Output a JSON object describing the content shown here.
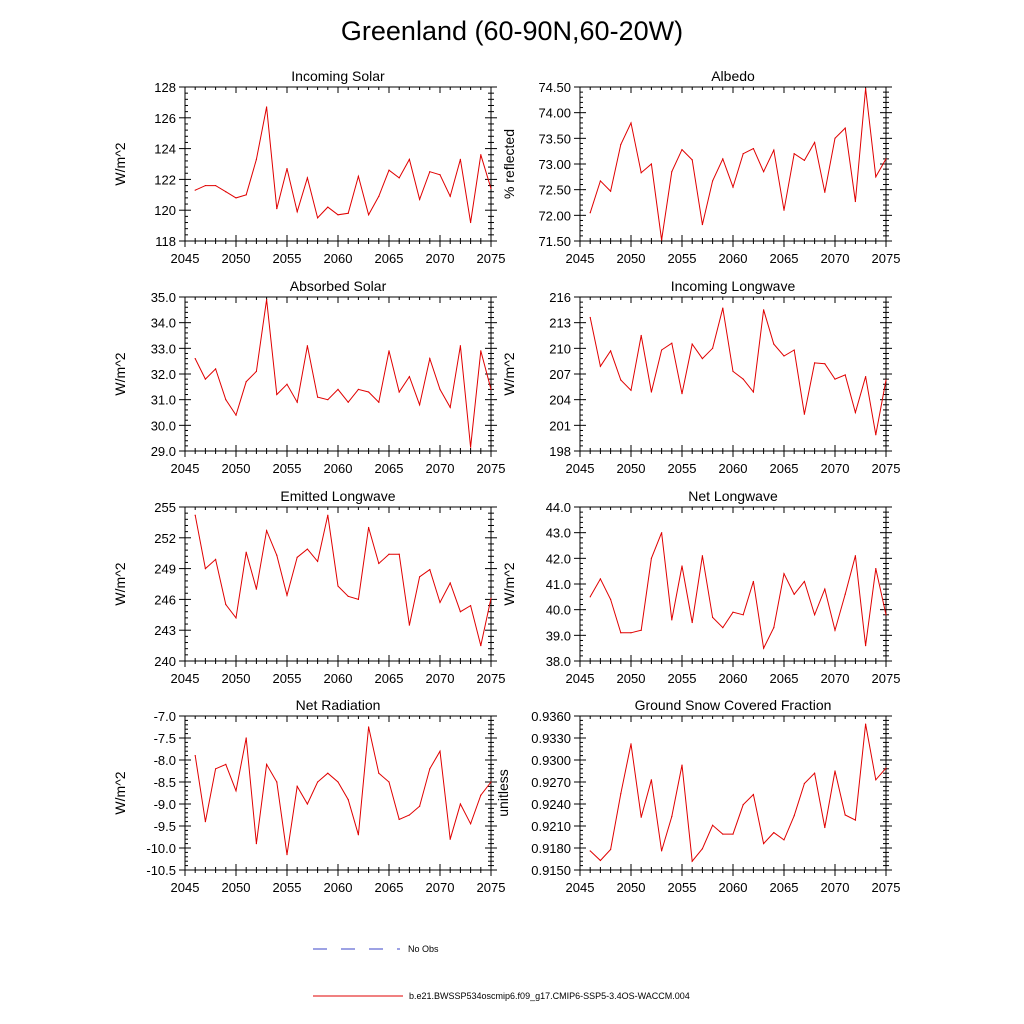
{
  "figure_title": "Greenland (60-90N,60-20W)",
  "legend": {
    "obs_label": "No Obs",
    "model_label": "b.e21.BWSSP534oscmip6.f09_g17.CMIP6-SSP5-3.4OS-WACCM.004",
    "model_color": "#e00000",
    "obs_color": "#3b45c8"
  },
  "chart_data": [
    {
      "type": "line",
      "title": "Incoming Solar",
      "xlabel": "",
      "ylabel": "W/m^2",
      "xlim": [
        2045,
        2075
      ],
      "ylim": [
        118,
        128
      ],
      "xticks": [
        "2045",
        "2050",
        "2055",
        "2060",
        "2065",
        "2070",
        "2075"
      ],
      "yticks": [
        "118",
        "120",
        "122",
        "124",
        "126",
        "128"
      ],
      "x": [
        2046,
        2047,
        2048,
        2049,
        2050,
        2051,
        2052,
        2053,
        2054,
        2055,
        2056,
        2057,
        2058,
        2059,
        2060,
        2061,
        2062,
        2063,
        2064,
        2065,
        2066,
        2067,
        2068,
        2069,
        2070,
        2071,
        2072,
        2073,
        2074,
        2075
      ],
      "series": [
        {
          "name": "b.e21.BWSSP534oscmip6.f09_g17.CMIP6-SSP5-3.4OS-WACCM.004",
          "values": [
            121.3,
            121.6,
            121.6,
            121.2,
            120.8,
            121.0,
            123.3,
            126.7,
            120.1,
            122.7,
            119.9,
            122.1,
            119.5,
            120.2,
            119.7,
            119.8,
            122.2,
            119.7,
            120.9,
            122.6,
            122.1,
            123.3,
            120.7,
            122.5,
            122.3,
            120.9,
            123.3,
            119.2,
            123.6,
            121.4
          ]
        }
      ]
    },
    {
      "type": "line",
      "title": "Albedo",
      "xlabel": "",
      "ylabel": "% reflected",
      "xlim": [
        2045,
        2075
      ],
      "ylim": [
        71.5,
        74.5
      ],
      "xticks": [
        "2045",
        "2050",
        "2055",
        "2060",
        "2065",
        "2070",
        "2075"
      ],
      "yticks": [
        "71.50",
        "72.00",
        "72.50",
        "73.00",
        "73.50",
        "74.00",
        "74.50"
      ],
      "x": [
        2046,
        2047,
        2048,
        2049,
        2050,
        2051,
        2052,
        2053,
        2054,
        2055,
        2056,
        2057,
        2058,
        2059,
        2060,
        2061,
        2062,
        2063,
        2064,
        2065,
        2066,
        2067,
        2068,
        2069,
        2070,
        2071,
        2072,
        2073,
        2074,
        2075
      ],
      "series": [
        {
          "name": "b.e21.BWSSP534oscmip6.f09_g17.CMIP6-SSP5-3.4OS-WACCM.004",
          "values": [
            72.05,
            72.67,
            72.47,
            73.38,
            73.8,
            72.83,
            73.0,
            71.52,
            72.85,
            73.28,
            73.08,
            71.82,
            72.67,
            73.1,
            72.55,
            73.2,
            73.3,
            72.85,
            73.27,
            72.1,
            73.2,
            73.07,
            73.42,
            72.45,
            73.5,
            73.7,
            72.27,
            74.47,
            72.75,
            73.1
          ]
        }
      ]
    },
    {
      "type": "line",
      "title": "Absorbed Solar",
      "xlabel": "",
      "ylabel": "W/m^2",
      "xlim": [
        2045,
        2075
      ],
      "ylim": [
        29.0,
        35.0
      ],
      "xticks": [
        "2045",
        "2050",
        "2055",
        "2060",
        "2065",
        "2070",
        "2075"
      ],
      "yticks": [
        "29.0",
        "30.0",
        "31.0",
        "32.0",
        "33.0",
        "34.0",
        "35.0"
      ],
      "x": [
        2046,
        2047,
        2048,
        2049,
        2050,
        2051,
        2052,
        2053,
        2054,
        2055,
        2056,
        2057,
        2058,
        2059,
        2060,
        2061,
        2062,
        2063,
        2064,
        2065,
        2066,
        2067,
        2068,
        2069,
        2070,
        2071,
        2072,
        2073,
        2074,
        2075
      ],
      "series": [
        {
          "name": "b.e21.BWSSP534oscmip6.f09_g17.CMIP6-SSP5-3.4OS-WACCM.004",
          "values": [
            32.6,
            31.8,
            32.2,
            31.0,
            30.4,
            31.7,
            32.1,
            34.9,
            31.2,
            31.6,
            30.9,
            33.1,
            31.1,
            31.0,
            31.4,
            30.9,
            31.4,
            31.3,
            30.9,
            32.9,
            31.3,
            31.9,
            30.8,
            32.6,
            31.4,
            30.7,
            33.1,
            29.15,
            32.9,
            31.4
          ]
        }
      ]
    },
    {
      "type": "line",
      "title": "Incoming Longwave",
      "xlabel": "",
      "ylabel": "W/m^2",
      "xlim": [
        2045,
        2075
      ],
      "ylim": [
        198,
        216
      ],
      "xticks": [
        "2045",
        "2050",
        "2055",
        "2060",
        "2065",
        "2070",
        "2075"
      ],
      "yticks": [
        "198",
        "201",
        "204",
        "207",
        "210",
        "213",
        "216"
      ],
      "x": [
        2046,
        2047,
        2048,
        2049,
        2050,
        2051,
        2052,
        2053,
        2054,
        2055,
        2056,
        2057,
        2058,
        2059,
        2060,
        2061,
        2062,
        2063,
        2064,
        2065,
        2066,
        2067,
        2068,
        2069,
        2070,
        2071,
        2072,
        2073,
        2074,
        2075
      ],
      "series": [
        {
          "name": "b.e21.BWSSP534oscmip6.f09_g17.CMIP6-SSP5-3.4OS-WACCM.004",
          "values": [
            213.6,
            207.9,
            209.7,
            206.3,
            205.1,
            211.5,
            204.9,
            209.8,
            210.6,
            204.7,
            210.5,
            208.8,
            210.0,
            214.7,
            207.3,
            206.4,
            204.9,
            214.5,
            210.5,
            209.1,
            209.8,
            202.3,
            208.3,
            208.2,
            206.4,
            206.9,
            202.5,
            206.7,
            199.9,
            206.3
          ]
        }
      ]
    },
    {
      "type": "line",
      "title": "Emitted Longwave",
      "xlabel": "",
      "ylabel": "W/m^2",
      "xlim": [
        2045,
        2075
      ],
      "ylim": [
        240,
        255
      ],
      "xticks": [
        "2045",
        "2050",
        "2055",
        "2060",
        "2065",
        "2070",
        "2075"
      ],
      "yticks": [
        "240",
        "243",
        "246",
        "249",
        "252",
        "255"
      ],
      "x": [
        2046,
        2047,
        2048,
        2049,
        2050,
        2051,
        2052,
        2053,
        2054,
        2055,
        2056,
        2057,
        2058,
        2059,
        2060,
        2061,
        2062,
        2063,
        2064,
        2065,
        2066,
        2067,
        2068,
        2069,
        2070,
        2071,
        2072,
        2073,
        2074,
        2075
      ],
      "series": [
        {
          "name": "b.e21.BWSSP534oscmip6.f09_g17.CMIP6-SSP5-3.4OS-WACCM.004",
          "values": [
            254.2,
            249.0,
            249.9,
            245.5,
            244.2,
            250.6,
            247.0,
            252.7,
            250.3,
            246.4,
            250.1,
            250.9,
            249.7,
            254.2,
            247.3,
            246.3,
            246.0,
            253.0,
            249.5,
            250.4,
            250.4,
            243.5,
            248.2,
            248.9,
            245.7,
            247.6,
            244.8,
            245.4,
            241.5,
            246.1
          ]
        }
      ]
    },
    {
      "type": "line",
      "title": "Net Longwave",
      "xlabel": "",
      "ylabel": "W/m^2",
      "xlim": [
        2045,
        2075
      ],
      "ylim": [
        38.0,
        44.0
      ],
      "xticks": [
        "2045",
        "2050",
        "2055",
        "2060",
        "2065",
        "2070",
        "2075"
      ],
      "yticks": [
        "38.0",
        "39.0",
        "40.0",
        "41.0",
        "42.0",
        "43.0",
        "44.0"
      ],
      "x": [
        2046,
        2047,
        2048,
        2049,
        2050,
        2051,
        2052,
        2053,
        2054,
        2055,
        2056,
        2057,
        2058,
        2059,
        2060,
        2061,
        2062,
        2063,
        2064,
        2065,
        2066,
        2067,
        2068,
        2069,
        2070,
        2071,
        2072,
        2073,
        2074,
        2075
      ],
      "series": [
        {
          "name": "b.e21.BWSSP534oscmip6.f09_g17.CMIP6-SSP5-3.4OS-WACCM.004",
          "values": [
            40.5,
            41.2,
            40.4,
            39.1,
            39.1,
            39.2,
            42.0,
            43.0,
            39.6,
            41.7,
            39.5,
            42.1,
            39.7,
            39.3,
            39.9,
            39.8,
            41.1,
            38.5,
            39.3,
            41.4,
            40.6,
            41.1,
            39.8,
            40.8,
            39.2,
            40.6,
            42.1,
            38.6,
            41.6,
            39.8
          ]
        }
      ]
    },
    {
      "type": "line",
      "title": "Net Radiation",
      "xlabel": "",
      "ylabel": "W/m^2",
      "xlim": [
        2045,
        2075
      ],
      "ylim": [
        -10.5,
        -7.0
      ],
      "xticks": [
        "2045",
        "2050",
        "2055",
        "2060",
        "2065",
        "2070",
        "2075"
      ],
      "yticks": [
        "-10.5",
        "-10.0",
        "-9.5",
        "-9.0",
        "-8.5",
        "-8.0",
        "-7.5",
        "-7.0"
      ],
      "x": [
        2046,
        2047,
        2048,
        2049,
        2050,
        2051,
        2052,
        2053,
        2054,
        2055,
        2056,
        2057,
        2058,
        2059,
        2060,
        2061,
        2062,
        2063,
        2064,
        2065,
        2066,
        2067,
        2068,
        2069,
        2070,
        2071,
        2072,
        2073,
        2074,
        2075
      ],
      "series": [
        {
          "name": "b.e21.BWSSP534oscmip6.f09_g17.CMIP6-SSP5-3.4OS-WACCM.004",
          "values": [
            -7.9,
            -9.4,
            -8.2,
            -8.1,
            -8.7,
            -7.5,
            -9.9,
            -8.1,
            -8.5,
            -10.15,
            -8.6,
            -9.0,
            -8.5,
            -8.3,
            -8.5,
            -8.9,
            -9.7,
            -7.25,
            -8.3,
            -8.5,
            -9.35,
            -9.25,
            -9.05,
            -8.2,
            -7.8,
            -9.8,
            -9.0,
            -9.45,
            -8.8,
            -8.5
          ]
        }
      ]
    },
    {
      "type": "line",
      "title": "Ground Snow Covered Fraction",
      "xlabel": "",
      "ylabel": "unitless",
      "xlim": [
        2045,
        2075
      ],
      "ylim": [
        0.915,
        0.936
      ],
      "xticks": [
        "2045",
        "2050",
        "2055",
        "2060",
        "2065",
        "2070",
        "2075"
      ],
      "yticks": [
        "0.9150",
        "0.9180",
        "0.9210",
        "0.9240",
        "0.9270",
        "0.9300",
        "0.9330",
        "0.9360"
      ],
      "x": [
        2046,
        2047,
        2048,
        2049,
        2050,
        2051,
        2052,
        2053,
        2054,
        2055,
        2056,
        2057,
        2058,
        2059,
        2060,
        2061,
        2062,
        2063,
        2064,
        2065,
        2066,
        2067,
        2068,
        2069,
        2070,
        2071,
        2072,
        2073,
        2074,
        2075
      ],
      "series": [
        {
          "name": "b.e21.BWSSP534oscmip6.f09_g17.CMIP6-SSP5-3.4OS-WACCM.004",
          "values": [
            0.9176,
            0.9163,
            0.9178,
            0.9254,
            0.9322,
            0.9222,
            0.9273,
            0.9176,
            0.9223,
            0.9293,
            0.9162,
            0.9179,
            0.9211,
            0.9199,
            0.9199,
            0.9239,
            0.9253,
            0.9186,
            0.9201,
            0.9191,
            0.9224,
            0.9268,
            0.9282,
            0.9208,
            0.9285,
            0.9225,
            0.9218,
            0.9349,
            0.9273,
            0.9289
          ]
        }
      ]
    }
  ]
}
